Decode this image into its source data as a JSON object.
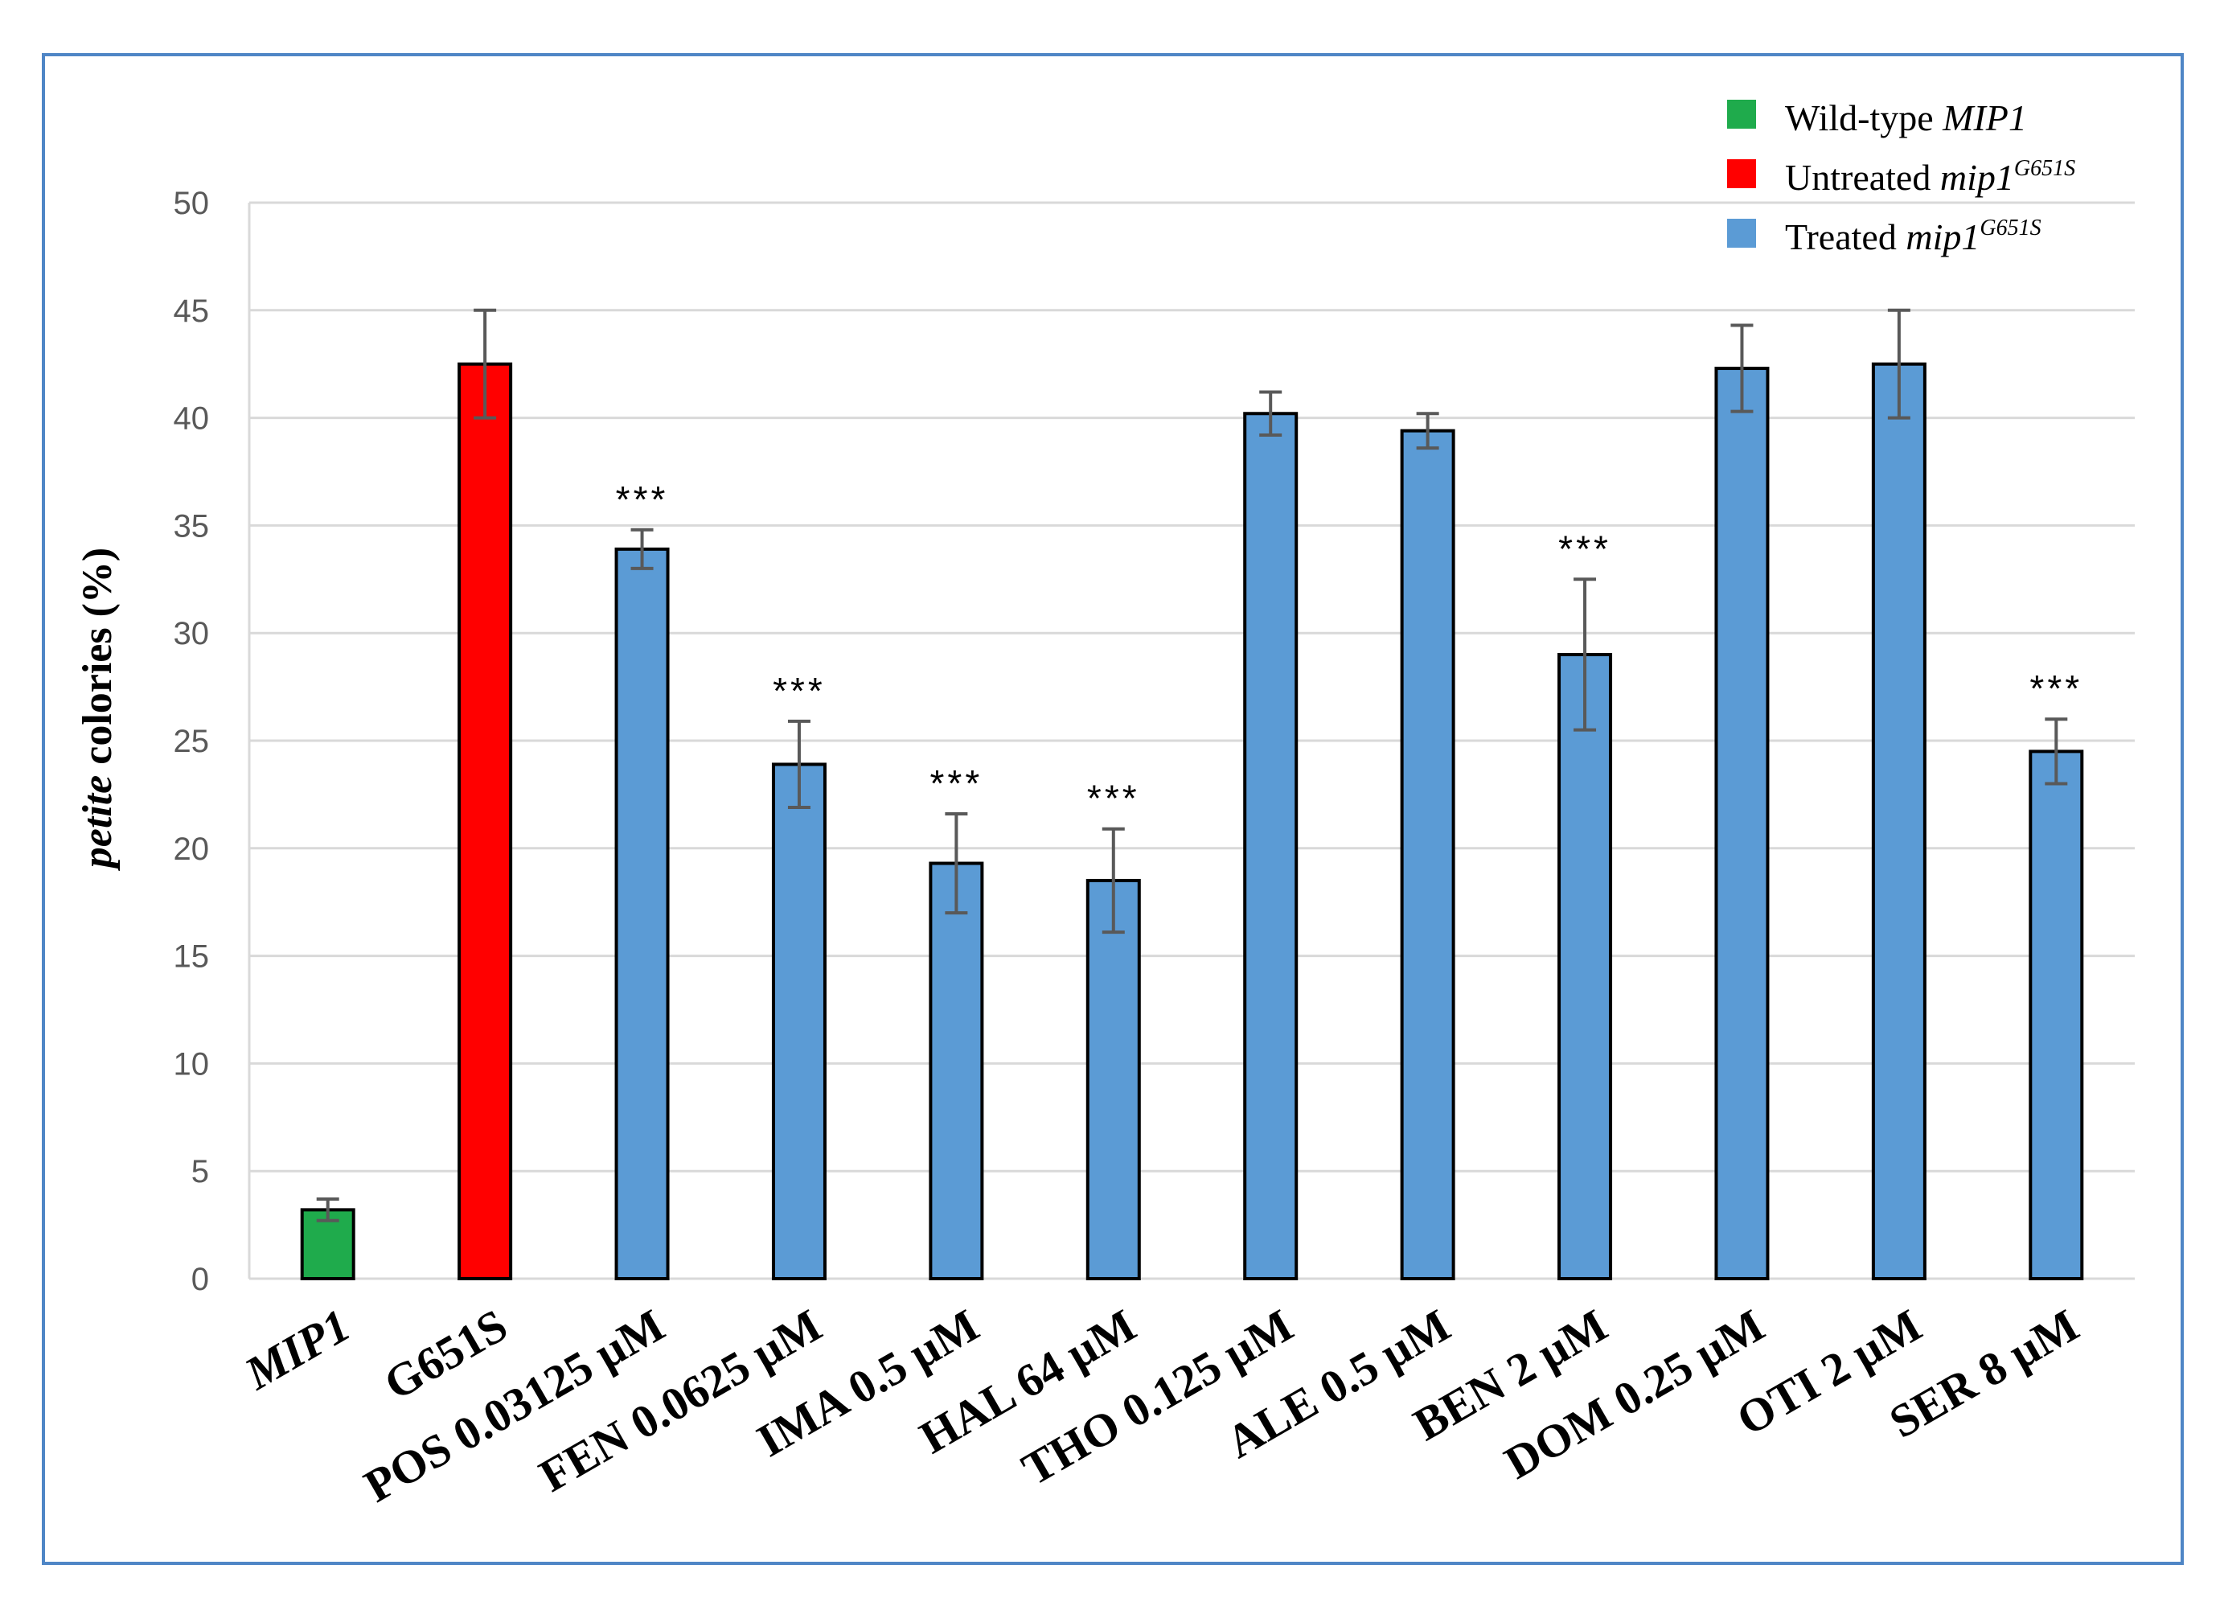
{
  "chart_data": {
    "type": "bar",
    "ylabel_italic": "petite",
    "ylabel_rest": " colories (%)",
    "ylim": [
      0,
      50
    ],
    "yticks": [
      "0",
      "5",
      "10",
      "15",
      "20",
      "25",
      "30",
      "35",
      "40",
      "45",
      "50"
    ],
    "grid": true,
    "categories": [
      "MIP1",
      "G651S",
      "POS 0.03125 µM",
      "FEN 0.0625 µM",
      "IMA 0.5 µM",
      "HAL 64 µM",
      "THO 0.125 µM",
      "ALE 0.5 µM",
      "BEN 2 µM",
      "DOM 0.25 µM",
      "OTI 2 µM",
      "SER 8 µM"
    ],
    "values": [
      3.2,
      42.5,
      33.9,
      23.9,
      19.3,
      18.5,
      40.2,
      39.4,
      29.0,
      42.3,
      42.5,
      24.5
    ],
    "errors": [
      0.5,
      2.5,
      0.9,
      2.0,
      2.3,
      2.4,
      1.0,
      0.8,
      3.5,
      2.0,
      2.5,
      1.5
    ],
    "groups": [
      "wt",
      "untreated",
      "treated",
      "treated",
      "treated",
      "treated",
      "treated",
      "treated",
      "treated",
      "treated",
      "treated",
      "treated"
    ],
    "significance": [
      "",
      "",
      "***",
      "***",
      "***",
      "***",
      "",
      "",
      "***",
      "",
      "",
      "***"
    ],
    "legend_position": "top-right",
    "legend": [
      {
        "key": "wt",
        "text": "Wild-type ",
        "italic": "MIP1",
        "sup": "",
        "color": "#1fab4c"
      },
      {
        "key": "untreated",
        "text": "Untreated ",
        "italic": "mip1",
        "sup": "G651S",
        "color": "#ff0000"
      },
      {
        "key": "treated",
        "text": "Treated ",
        "italic": "mip1",
        "sup": "G651S",
        "color": "#5b9bd5"
      }
    ]
  }
}
